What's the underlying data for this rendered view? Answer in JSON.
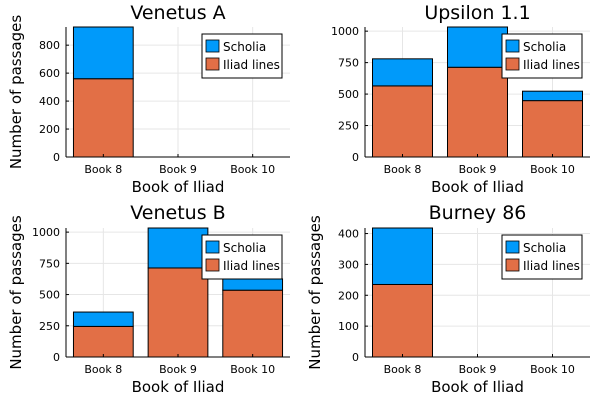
{
  "colors": {
    "scholia": "#009AFA",
    "iliad": "#E26F46"
  },
  "chart_data": [
    {
      "type": "bar",
      "stacked": true,
      "title": "Venetus A",
      "xlabel": "Book of Iliad",
      "ylabel": "Number of passages",
      "categories": [
        "Book 8",
        "Book 9",
        "Book 10"
      ],
      "series": [
        {
          "name": "Iliad lines",
          "values": [
            560,
            0,
            0
          ]
        },
        {
          "name": "Scholia",
          "values": [
            370,
            0,
            0
          ]
        }
      ],
      "ylim": [
        0,
        930
      ],
      "yticks": [
        0,
        200,
        400,
        600,
        800
      ],
      "legend": "top-right",
      "grid": true
    },
    {
      "type": "bar",
      "stacked": true,
      "title": "Upsilon 1.1",
      "xlabel": "Book of Iliad",
      "ylabel": "",
      "categories": [
        "Book 8",
        "Book 9",
        "Book 10"
      ],
      "series": [
        {
          "name": "Iliad lines",
          "values": [
            565,
            713,
            448
          ]
        },
        {
          "name": "Scholia",
          "values": [
            215,
            320,
            75
          ]
        }
      ],
      "ylim": [
        0,
        1033
      ],
      "yticks": [
        0,
        250,
        500,
        750,
        1000
      ],
      "legend": "top-right",
      "grid": true
    },
    {
      "type": "bar",
      "stacked": true,
      "title": "Venetus B",
      "xlabel": "Book of Iliad",
      "ylabel": "Number of passages",
      "categories": [
        "Book 8",
        "Book 9",
        "Book 10"
      ],
      "series": [
        {
          "name": "Iliad lines",
          "values": [
            245,
            713,
            535
          ]
        },
        {
          "name": "Scholia",
          "values": [
            115,
            320,
            90
          ]
        }
      ],
      "ylim": [
        0,
        1033
      ],
      "yticks": [
        0,
        250,
        500,
        750,
        1000
      ],
      "legend": "top-right",
      "grid": true
    },
    {
      "type": "bar",
      "stacked": true,
      "title": "Burney 86",
      "xlabel": "Book of Iliad",
      "ylabel": "Number of passages",
      "categories": [
        "Book 8",
        "Book 9",
        "Book 10"
      ],
      "series": [
        {
          "name": "Iliad lines",
          "values": [
            235,
            0,
            0
          ]
        },
        {
          "name": "Scholia",
          "values": [
            183,
            0,
            0
          ]
        }
      ],
      "ylim": [
        0,
        418
      ],
      "yticks": [
        0,
        100,
        200,
        300,
        400
      ],
      "legend": "top-right",
      "grid": true
    }
  ]
}
